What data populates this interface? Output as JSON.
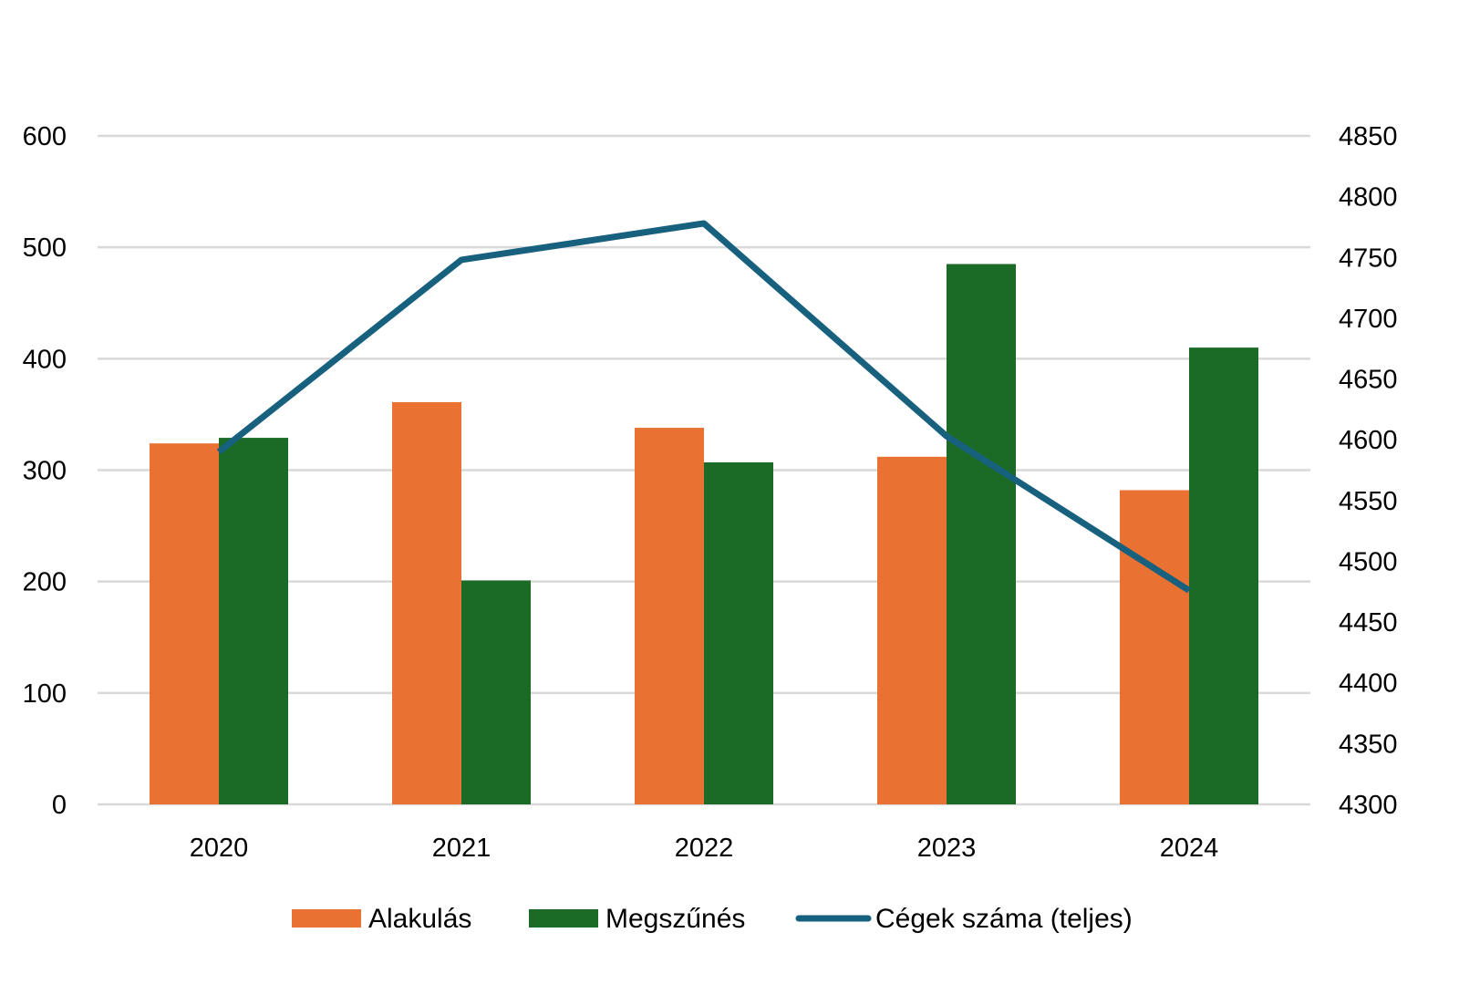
{
  "chart_data": {
    "type": "bar",
    "categories": [
      "2020",
      "2021",
      "2022",
      "2023",
      "2024"
    ],
    "series": [
      {
        "name": "Alakulás",
        "type": "bar",
        "axis": "left",
        "color": "#E97132",
        "values": [
          324,
          361,
          338,
          312,
          282
        ]
      },
      {
        "name": "Megszűnés",
        "type": "bar",
        "axis": "left",
        "color": "#1B6B26",
        "values": [
          329,
          201,
          307,
          485,
          410
        ]
      },
      {
        "name": "Cégek száma (teljes)",
        "type": "line",
        "axis": "right",
        "color": "#17617F",
        "values": [
          4590,
          4748,
          4778,
          4603,
          4476
        ]
      }
    ],
    "left_axis": {
      "min": 0,
      "max": 600,
      "ticks": [
        "0",
        "100",
        "200",
        "300",
        "400",
        "500",
        "600"
      ]
    },
    "right_axis": {
      "min": 4300,
      "max": 4850,
      "ticks": [
        "4300",
        "4350",
        "4400",
        "4450",
        "4500",
        "4550",
        "4600",
        "4650",
        "4700",
        "4750",
        "4800",
        "4850"
      ]
    },
    "grid": true,
    "legend_position": "bottom"
  }
}
